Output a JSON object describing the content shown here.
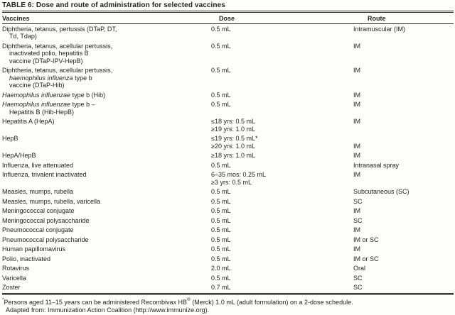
{
  "title": "TABLE 6: Dose and route of administration for selected vaccines",
  "table": {
    "headers": [
      "Vaccines",
      "Dose",
      "Route"
    ],
    "rows": [
      {
        "vaccine": [
          [
            {
              "t": "Diphtheria, tetanus, pertussis (DTaP, DT,"
            }
          ],
          [
            {
              "t": "Td, Tdap)"
            }
          ]
        ],
        "dose": [
          "0.5 mL"
        ],
        "route": [
          "Intramuscular (IM)"
        ]
      },
      {
        "vaccine": [
          [
            {
              "t": "Diphtheria, tetanus, acellular pertussis,"
            }
          ],
          [
            {
              "t": "inactivated polio, hepatitis B"
            }
          ],
          [
            {
              "t": "vaccine (DTaP-IPV-HepB)"
            }
          ]
        ],
        "dose": [
          "0.5 mL"
        ],
        "route": [
          "IM"
        ]
      },
      {
        "vaccine": [
          [
            {
              "t": "Diphtheria, tetanus, acellular pertussis,"
            }
          ],
          [
            {
              "t": "haemophilus influenza",
              "i": true
            },
            {
              "t": " type b"
            }
          ],
          [
            {
              "t": "vaccine (DTaP-Hib)"
            }
          ]
        ],
        "dose": [
          "0.5 mL"
        ],
        "route": [
          "IM"
        ]
      },
      {
        "vaccine": [
          [
            {
              "t": "Haemophilus influenzae",
              "i": true
            },
            {
              "t": " type b (Hib)"
            }
          ]
        ],
        "dose": [
          "0.5 mL"
        ],
        "route": [
          "IM"
        ]
      },
      {
        "vaccine": [
          [
            {
              "t": "Haemophilus influenzae",
              "i": true
            },
            {
              "t": " type b –"
            }
          ],
          [
            {
              "t": "Hepatitis B (Hib-HepB)"
            }
          ]
        ],
        "dose": [
          "0.5 mL"
        ],
        "route": [
          "IM"
        ]
      },
      {
        "vaccine": [
          [
            {
              "t": "Hepatitis A (HepA)"
            }
          ]
        ],
        "dose": [
          "≤18 yrs: 0.5 mL",
          "≥19 yrs: 1.0 mL"
        ],
        "route": [
          "IM"
        ]
      },
      {
        "vaccine": [
          [
            {
              "t": "HepB"
            }
          ]
        ],
        "dose": [
          "≤19 yrs: 0.5 mL*",
          "≥20 yrs: 1.0 mL"
        ],
        "route": [
          "",
          "IM"
        ]
      },
      {
        "vaccine": [
          [
            {
              "t": "HepA/HepB"
            }
          ]
        ],
        "dose": [
          "≥18 yrs: 1.0 mL"
        ],
        "route": [
          "IM"
        ]
      },
      {
        "vaccine": [
          [
            {
              "t": "Influenza, live attenuated"
            }
          ]
        ],
        "dose": [
          "0.5 mL"
        ],
        "route": [
          "Intranasal spray"
        ]
      },
      {
        "vaccine": [
          [
            {
              "t": "Influenza, trivalent inactivated"
            }
          ]
        ],
        "dose": [
          "6–35 mos: 0.25 mL",
          "≥3 yrs: 0.5 mL"
        ],
        "route": [
          "IM"
        ]
      },
      {
        "vaccine": [
          [
            {
              "t": "Measles, mumps, rubella"
            }
          ]
        ],
        "dose": [
          "0.5 mL"
        ],
        "route": [
          "Subcutaneous (SC)"
        ]
      },
      {
        "vaccine": [
          [
            {
              "t": "Measles, mumps, rubella, varicella"
            }
          ]
        ],
        "dose": [
          "0.5 mL"
        ],
        "route": [
          "SC"
        ]
      },
      {
        "vaccine": [
          [
            {
              "t": "Meningococcal conjugate"
            }
          ]
        ],
        "dose": [
          "0.5 mL"
        ],
        "route": [
          "IM"
        ]
      },
      {
        "vaccine": [
          [
            {
              "t": "Meningococcal polysaccharide"
            }
          ]
        ],
        "dose": [
          "0.5 mL"
        ],
        "route": [
          "SC"
        ]
      },
      {
        "vaccine": [
          [
            {
              "t": "Pneumococcal conjugate"
            }
          ]
        ],
        "dose": [
          "0.5 mL"
        ],
        "route": [
          "IM"
        ]
      },
      {
        "vaccine": [
          [
            {
              "t": "Pneumococcal polysaccharide"
            }
          ]
        ],
        "dose": [
          "0.5 mL"
        ],
        "route": [
          "IM or SC"
        ]
      },
      {
        "vaccine": [
          [
            {
              "t": "Human papillomavirus"
            }
          ]
        ],
        "dose": [
          "0.5 mL"
        ],
        "route": [
          "IM"
        ]
      },
      {
        "vaccine": [
          [
            {
              "t": "Polio, inactivated"
            }
          ]
        ],
        "dose": [
          "0.5 mL"
        ],
        "route": [
          "IM or SC"
        ]
      },
      {
        "vaccine": [
          [
            {
              "t": "Rotavirus"
            }
          ]
        ],
        "dose": [
          "2.0 mL"
        ],
        "route": [
          "Oral"
        ]
      },
      {
        "vaccine": [
          [
            {
              "t": "Varicella"
            }
          ]
        ],
        "dose": [
          "0.5 mL"
        ],
        "route": [
          "SC"
        ]
      },
      {
        "vaccine": [
          [
            {
              "t": "Zoster"
            }
          ]
        ],
        "dose": [
          "0.7 mL"
        ],
        "route": [
          "SC"
        ]
      }
    ]
  },
  "footnotes": [
    {
      "indent": false,
      "segments": [
        {
          "t": "*",
          "sup": true
        },
        {
          "t": "Persons aged 11–15 years can be administered Recombivax HB"
        },
        {
          "t": "®",
          "sup": true
        },
        {
          "t": " (Merck) 1.0 mL (adult formulation) on a 2-dose schedule."
        }
      ]
    },
    {
      "indent": true,
      "segments": [
        {
          "t": "Adapted from: Immunization Action Coalition (http://www.immunize.org)."
        }
      ]
    }
  ]
}
